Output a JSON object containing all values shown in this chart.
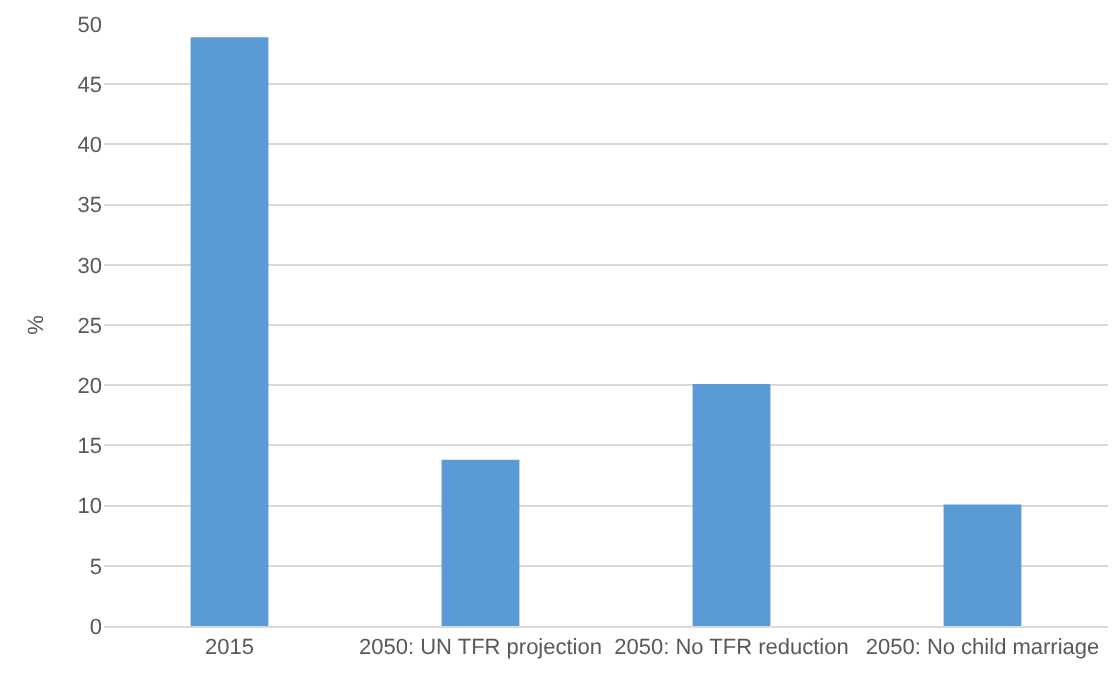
{
  "chart_data": {
    "type": "bar",
    "categories": [
      "2015",
      "2050: UN TFR projection",
      "2050: No TFR reduction",
      "2050: No child marriage"
    ],
    "values": [
      48.9,
      13.8,
      20.1,
      10.1
    ],
    "color": "#5b9bd5",
    "ylabel": "%",
    "ylim": [
      0,
      50
    ],
    "yticks": [
      0,
      5,
      10,
      15,
      20,
      25,
      30,
      35,
      40,
      45,
      50
    ],
    "grid": "y"
  }
}
